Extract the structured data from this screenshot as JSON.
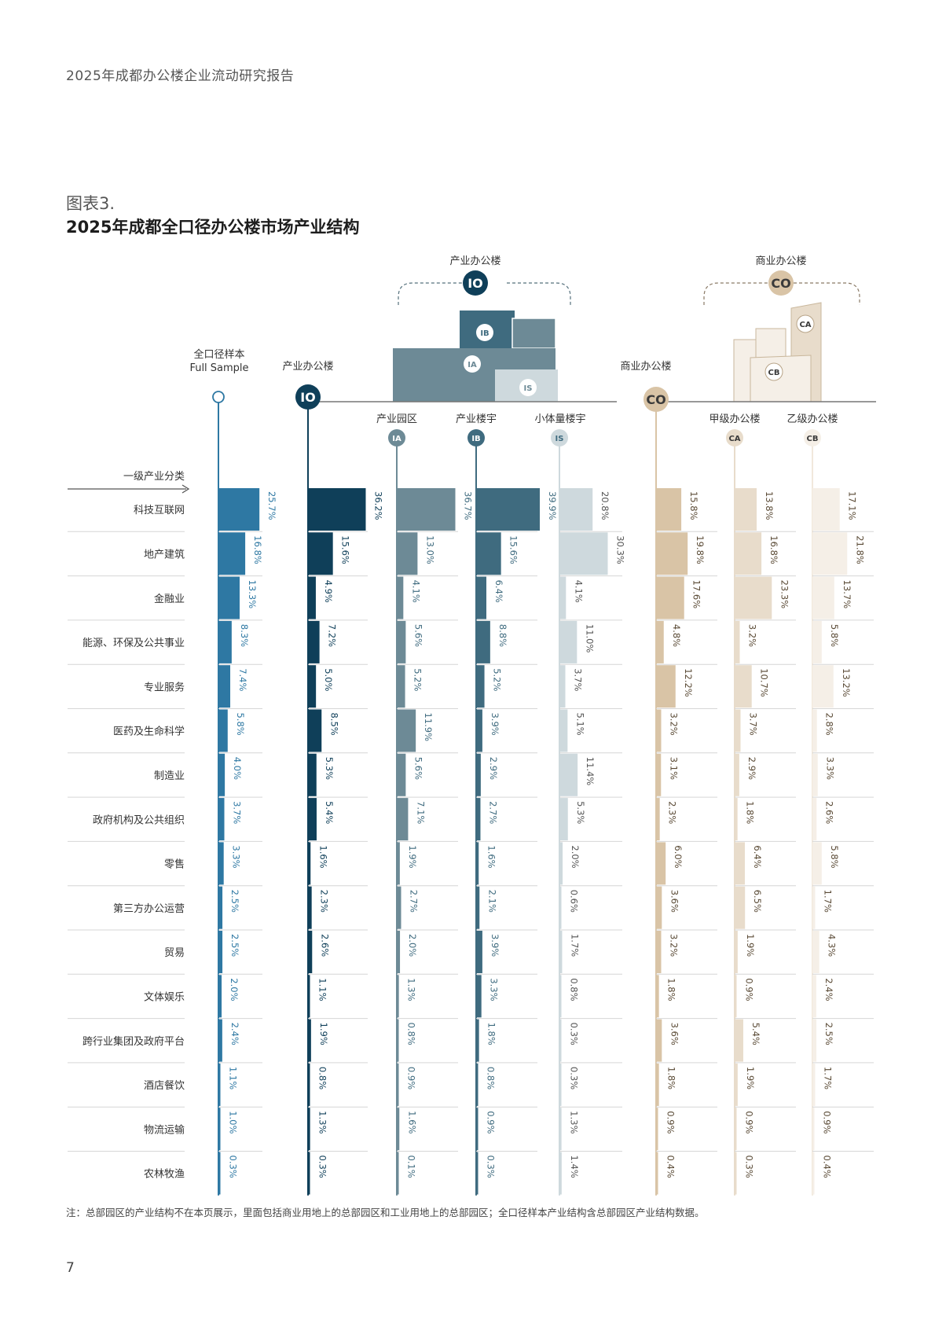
{
  "header": {
    "report_title": "2025年成都办公楼企业流动研究报告"
  },
  "figure": {
    "label": "图表3.",
    "title": "2025年成都全口径办公楼市场产业结构"
  },
  "groups": {
    "io": {
      "label": "产业办公楼",
      "badge": "IO"
    },
    "co": {
      "label": "商业办公楼",
      "badge": "CO"
    }
  },
  "row_header": "一级产业分类",
  "note": "注：总部园区的产业结构不在本页展示，里面包括商业用地上的总部园区和工业用地上的总部园区；全口径样本产业结构含总部园区产业结构数据。",
  "page_number": "7",
  "colors": {
    "full": "#2e78a3",
    "io": "#0f3f59",
    "ia": "#6d8a96",
    "ib": "#3f6b7f",
    "is": "#ced9dd",
    "co": "#d9c4a6",
    "ca": "#e8dccb",
    "cb": "#f5efe7",
    "grid": "#d6d6d6",
    "axis": "#777777"
  },
  "chart_data": {
    "type": "bar",
    "orientation": "horizontal",
    "unit": "%",
    "categories": [
      "科技互联网",
      "地产建筑",
      "金融业",
      "能源、环保及公共事业",
      "专业服务",
      "医药及生命科学",
      "制造业",
      "政府机构及公共组织",
      "零售",
      "第三方办公运营",
      "贸易",
      "文体娱乐",
      "跨行业集团及政府平台",
      "酒店餐饮",
      "物流运输",
      "农林牧渔"
    ],
    "series": [
      {
        "key": "full",
        "name": "全口径样本",
        "name_en": "Full Sample",
        "badge": "",
        "values": [
          25.7,
          16.8,
          13.3,
          8.3,
          7.4,
          5.8,
          4.0,
          3.7,
          3.3,
          2.5,
          2.5,
          2.0,
          2.4,
          1.1,
          1.0,
          0.3
        ],
        "labels": [
          "25.7%",
          "16.8%",
          "13.3%",
          "8.3%",
          "7.4%",
          "5.8%",
          "4.0%",
          "3.7%",
          "3.3%",
          "2.5%",
          "2.5%",
          "2.0%",
          "2.4%",
          "1.1%",
          "1.0%",
          "0.3%"
        ]
      },
      {
        "key": "io",
        "name": "产业办公楼",
        "badge": "IO",
        "values": [
          36.2,
          15.6,
          4.9,
          7.2,
          5.0,
          8.5,
          5.3,
          5.4,
          1.6,
          2.3,
          2.6,
          1.1,
          1.9,
          0.8,
          1.3,
          0.3
        ],
        "labels": [
          "36.2%",
          "15.6%",
          "4.9%",
          "7.2%",
          "5.0%",
          "8.5%",
          "5.3%",
          "5.4%",
          "1.6%",
          "2.3%",
          "2.6%",
          "1.1%",
          "1.9%",
          "0.8%",
          "1.3%",
          "0.3%"
        ]
      },
      {
        "key": "ia",
        "name": "产业园区",
        "badge": "IA",
        "values": [
          36.7,
          13.0,
          4.1,
          5.6,
          5.2,
          11.9,
          5.6,
          7.1,
          1.9,
          2.7,
          2.0,
          1.3,
          0.8,
          0.9,
          1.6,
          0.1
        ],
        "labels": [
          "36.7%",
          "13.0%",
          "4.1%",
          "5.6%",
          "5.2%",
          "11.9%",
          "5.6%",
          "7.1%",
          "1.9%",
          "2.7%",
          "2.0%",
          "1.3%",
          "0.8%",
          "0.9%",
          "1.6%",
          "0.1%"
        ]
      },
      {
        "key": "ib",
        "name": "产业楼宇",
        "badge": "IB",
        "values": [
          39.9,
          15.6,
          6.4,
          8.8,
          5.2,
          3.9,
          2.9,
          2.7,
          1.6,
          2.1,
          3.9,
          3.3,
          1.8,
          0.8,
          0.9,
          0.3
        ],
        "labels": [
          "39.9%",
          "15.6%",
          "6.4%",
          "8.8%",
          "5.2%",
          "3.9%",
          "2.9%",
          "2.7%",
          "1.6%",
          "2.1%",
          "3.9%",
          "3.3%",
          "1.8%",
          "0.8%",
          "0.9%",
          "0.3%"
        ]
      },
      {
        "key": "is",
        "name": "小体量楼宇",
        "badge": "IS",
        "values": [
          20.8,
          30.3,
          4.1,
          11.0,
          3.7,
          5.1,
          11.4,
          5.3,
          2.0,
          0.6,
          1.7,
          0.8,
          0.3,
          0.3,
          1.3,
          1.4
        ],
        "labels": [
          "20.8%",
          "30.3%",
          "4.1%",
          "11.0%",
          "3.7%",
          "5.1%",
          "11.4%",
          "5.3%",
          "2.0%",
          "0.6%",
          "1.7%",
          "0.8%",
          "0.3%",
          "0.3%",
          "1.3%",
          "1.4%"
        ]
      },
      {
        "key": "co",
        "name": "商业办公楼",
        "badge": "CO",
        "values": [
          15.8,
          19.8,
          17.6,
          4.8,
          12.2,
          3.2,
          3.1,
          2.3,
          6.0,
          3.6,
          3.2,
          1.8,
          3.6,
          1.8,
          0.9,
          0.4
        ],
        "labels": [
          "15.8%",
          "19.8%",
          "17.6%",
          "4.8%",
          "12.2%",
          "3.2%",
          "3.1%",
          "2.3%",
          "6.0%",
          "3.6%",
          "3.2%",
          "1.8%",
          "3.6%",
          "1.8%",
          "0.9%",
          "0.4%"
        ]
      },
      {
        "key": "ca",
        "name": "甲级办公楼",
        "badge": "CA",
        "values": [
          13.8,
          16.8,
          23.3,
          3.2,
          10.7,
          3.7,
          2.9,
          1.8,
          6.4,
          6.5,
          1.9,
          0.9,
          5.4,
          1.9,
          0.9,
          0.3
        ],
        "labels": [
          "13.8%",
          "16.8%",
          "23.3%",
          "3.2%",
          "10.7%",
          "3.7%",
          "2.9%",
          "1.8%",
          "6.4%",
          "6.5%",
          "1.9%",
          "0.9%",
          "5.4%",
          "1.9%",
          "0.9%",
          "0.3%"
        ]
      },
      {
        "key": "cb",
        "name": "乙级办公楼",
        "badge": "CB",
        "values": [
          17.1,
          21.8,
          13.7,
          5.8,
          13.2,
          2.8,
          3.3,
          2.6,
          5.8,
          1.7,
          4.3,
          2.4,
          2.5,
          1.7,
          0.9,
          0.4
        ],
        "labels": [
          "17.1%",
          "21.8%",
          "13.7%",
          "5.8%",
          "13.2%",
          "2.8%",
          "3.3%",
          "2.6%",
          "5.8%",
          "1.7%",
          "4.3%",
          "2.4%",
          "2.5%",
          "1.7%",
          "0.9%",
          "0.4%"
        ]
      }
    ]
  }
}
